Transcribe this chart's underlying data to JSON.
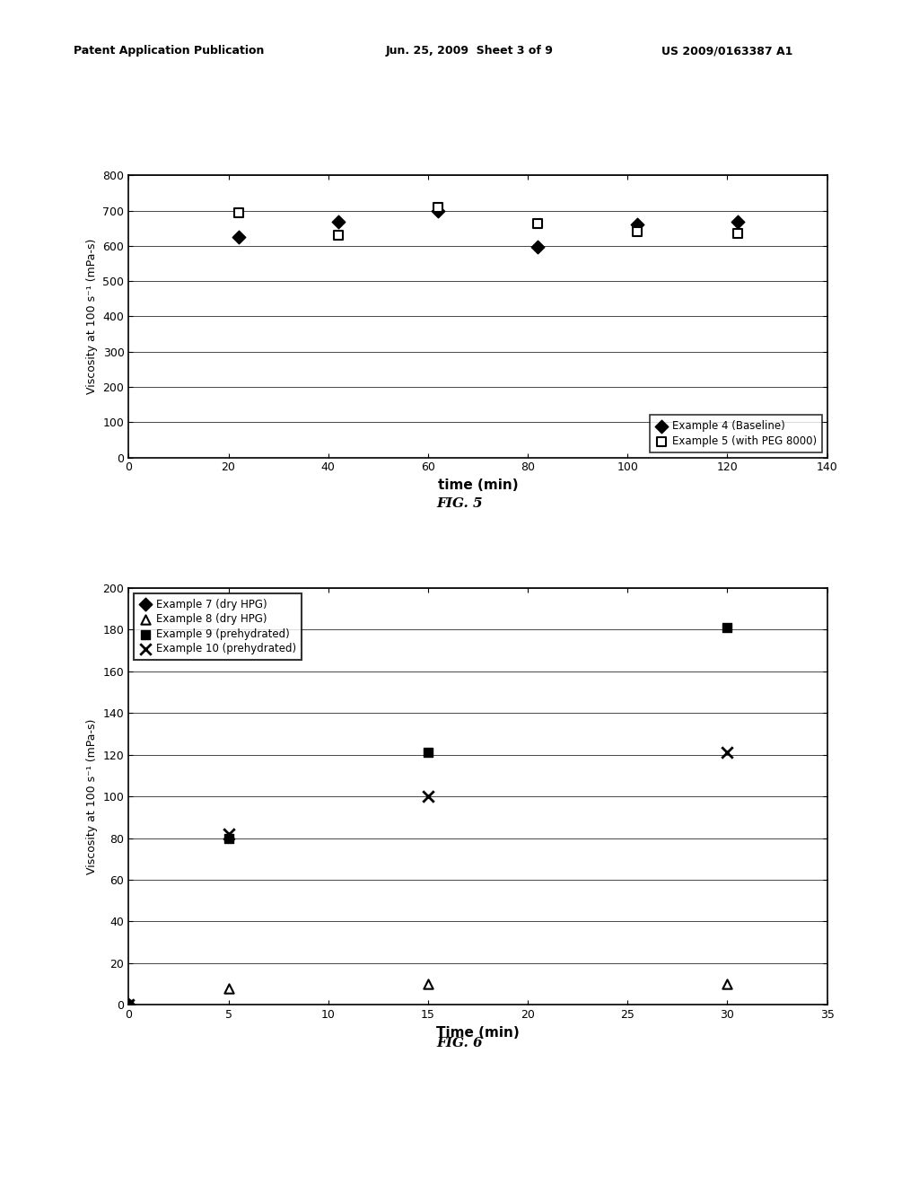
{
  "fig5": {
    "xlabel": "time (min)",
    "ylabel": "Viscosity at 100 s⁻¹ (mPa-s)",
    "xlim": [
      0,
      140
    ],
    "ylim": [
      0,
      800
    ],
    "xticks": [
      0,
      20,
      40,
      60,
      80,
      100,
      120,
      140
    ],
    "yticks": [
      0,
      100,
      200,
      300,
      400,
      500,
      600,
      700,
      800
    ],
    "series": [
      {
        "label": "Example 4 (Baseline)",
        "marker": "D",
        "color": "black",
        "filled": true,
        "x": [
          22,
          42,
          62,
          82,
          102,
          122
        ],
        "y": [
          625,
          668,
          700,
          597,
          662,
          668
        ]
      },
      {
        "label": "Example 5 (with PEG 8000)",
        "marker": "s",
        "color": "black",
        "filled": false,
        "x": [
          22,
          42,
          62,
          82,
          102,
          122
        ],
        "y": [
          693,
          630,
          708,
          663,
          640,
          635
        ]
      }
    ],
    "fig_label": "FIG. 5"
  },
  "fig6": {
    "xlabel": "Time (min)",
    "ylabel": "Viscosity at 100 s⁻¹ (mPa-s)",
    "xlim": [
      0,
      35
    ],
    "ylim": [
      0,
      200
    ],
    "xticks": [
      0,
      5,
      10,
      15,
      20,
      25,
      30,
      35
    ],
    "yticks": [
      0,
      20,
      40,
      60,
      80,
      100,
      120,
      140,
      160,
      180,
      200
    ],
    "series": [
      {
        "label": "Example 7 (dry HPG)",
        "marker": "D",
        "color": "black",
        "filled": true,
        "x": [
          0
        ],
        "y": [
          0
        ]
      },
      {
        "label": "Example 8 (dry HPG)",
        "marker": "^",
        "color": "black",
        "filled": false,
        "x": [
          0,
          5,
          15,
          30
        ],
        "y": [
          0,
          8,
          10,
          10
        ]
      },
      {
        "label": "Example 9 (prehydrated)",
        "marker": "s",
        "color": "black",
        "filled": true,
        "x": [
          0,
          5,
          15,
          30
        ],
        "y": [
          0,
          80,
          121,
          181
        ]
      },
      {
        "label": "Example 10 (prehydrated)",
        "marker": "x",
        "color": "black",
        "filled": false,
        "x": [
          0,
          5,
          15,
          30
        ],
        "y": [
          0,
          82,
          100,
          121
        ]
      }
    ],
    "fig_label": "FIG. 6"
  },
  "header_left": "Patent Application Publication",
  "header_mid": "Jun. 25, 2009  Sheet 3 of 9",
  "header_right": "US 2009/0163387 A1",
  "background_color": "#ffffff"
}
